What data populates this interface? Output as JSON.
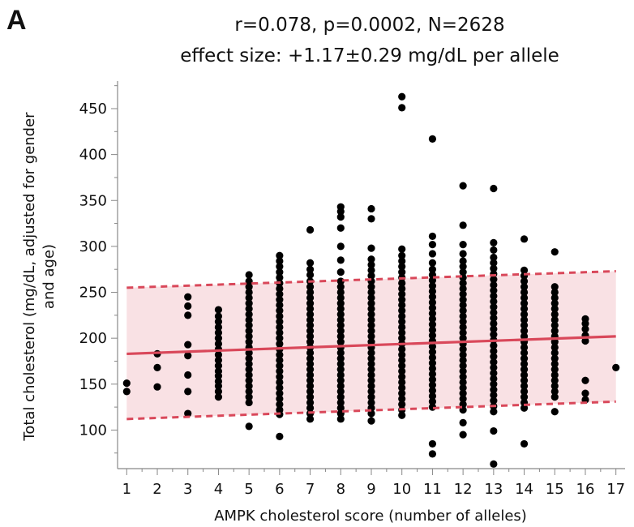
{
  "panel_label": "A",
  "chart_data": {
    "type": "scatter",
    "title": "r=0.078, p=0.0002, N=2628",
    "subtitle": "effect size: +1.17±0.29 mg/dL per allele",
    "xlabel": "AMPK cholesterol score (number of alleles)",
    "ylabel_lines": [
      "Total cholesterol (mg/dL, adjusted for gender",
      "and age)"
    ],
    "xlim": [
      0.7,
      17.3
    ],
    "ylim": [
      58,
      480
    ],
    "x_ticks": [
      1,
      2,
      3,
      4,
      5,
      6,
      7,
      8,
      9,
      10,
      11,
      12,
      13,
      14,
      15,
      16,
      17
    ],
    "y_ticks": [
      100,
      150,
      200,
      250,
      300,
      350,
      400,
      450
    ],
    "regression": {
      "x": [
        1,
        17
      ],
      "y": [
        183,
        202
      ],
      "color": "#d9485a"
    },
    "prediction_band": {
      "x": [
        1,
        17
      ],
      "lower": [
        112,
        131
      ],
      "upper": [
        255,
        273
      ],
      "fill": "#f9e1e4",
      "color": "#d9485a"
    },
    "point_color": "#000000",
    "points": [
      {
        "x": 1,
        "y": [
          142,
          151
        ]
      },
      {
        "x": 2,
        "y": [
          147,
          168,
          183
        ]
      },
      {
        "x": 3,
        "y": [
          118,
          142,
          160,
          181,
          193,
          225,
          235,
          245
        ]
      },
      {
        "x": 4,
        "y": [
          136,
          142,
          148,
          153,
          159,
          164,
          170,
          176,
          182,
          188,
          194,
          200,
          206,
          212,
          218,
          224,
          231
        ]
      },
      {
        "x": 5,
        "y": [
          104,
          130,
          136,
          142,
          148,
          154,
          160,
          166,
          172,
          178,
          184,
          190,
          196,
          202,
          208,
          214,
          220,
          226,
          232,
          238,
          244,
          250,
          256,
          262,
          269
        ]
      },
      {
        "x": 6,
        "y": [
          93,
          117,
          122,
          128,
          134,
          140,
          146,
          152,
          158,
          164,
          170,
          176,
          182,
          188,
          194,
          200,
          206,
          212,
          218,
          224,
          230,
          236,
          242,
          248,
          254,
          260,
          266,
          272,
          278,
          284,
          290
        ]
      },
      {
        "x": 7,
        "y": [
          112,
          118,
          124,
          130,
          136,
          142,
          148,
          154,
          160,
          166,
          172,
          178,
          184,
          190,
          196,
          202,
          208,
          214,
          220,
          226,
          232,
          238,
          244,
          250,
          256,
          262,
          269,
          275,
          282,
          318
        ]
      },
      {
        "x": 8,
        "y": [
          112,
          118,
          124,
          130,
          136,
          142,
          148,
          154,
          160,
          166,
          172,
          178,
          184,
          190,
          196,
          202,
          208,
          214,
          220,
          226,
          232,
          238,
          244,
          250,
          256,
          262,
          272,
          285,
          300,
          320,
          332,
          338,
          343
        ]
      },
      {
        "x": 9,
        "y": [
          110,
          118,
          124,
          130,
          136,
          142,
          148,
          154,
          160,
          166,
          172,
          178,
          184,
          190,
          196,
          202,
          208,
          214,
          220,
          226,
          232,
          238,
          244,
          250,
          256,
          262,
          268,
          274,
          280,
          286,
          298,
          330,
          341
        ]
      },
      {
        "x": 10,
        "y": [
          116,
          122,
          128,
          134,
          140,
          146,
          152,
          158,
          164,
          170,
          176,
          182,
          188,
          194,
          200,
          206,
          212,
          218,
          224,
          230,
          236,
          242,
          248,
          254,
          260,
          266,
          272,
          278,
          284,
          290,
          297,
          451,
          463
        ]
      },
      {
        "x": 11,
        "y": [
          74,
          85,
          125,
          131,
          137,
          143,
          149,
          155,
          161,
          167,
          173,
          179,
          185,
          191,
          197,
          203,
          209,
          215,
          221,
          227,
          233,
          239,
          245,
          251,
          257,
          263,
          269,
          275,
          282,
          292,
          302,
          311,
          417
        ]
      },
      {
        "x": 12,
        "y": [
          95,
          108,
          122,
          128,
          134,
          140,
          146,
          152,
          158,
          164,
          170,
          176,
          182,
          188,
          194,
          200,
          206,
          212,
          218,
          224,
          230,
          236,
          242,
          248,
          254,
          260,
          266,
          272,
          278,
          284,
          292,
          302,
          323,
          366
        ]
      },
      {
        "x": 13,
        "y": [
          63,
          99,
          120,
          126,
          132,
          138,
          144,
          150,
          156,
          162,
          168,
          174,
          180,
          186,
          192,
          198,
          204,
          210,
          216,
          222,
          228,
          234,
          240,
          246,
          252,
          258,
          264,
          270,
          276,
          282,
          288,
          296,
          304,
          363
        ]
      },
      {
        "x": 14,
        "y": [
          85,
          124,
          130,
          136,
          142,
          148,
          154,
          160,
          166,
          172,
          178,
          184,
          190,
          196,
          202,
          208,
          214,
          220,
          226,
          232,
          238,
          244,
          250,
          256,
          262,
          268,
          274,
          308
        ]
      },
      {
        "x": 15,
        "y": [
          120,
          136,
          142,
          148,
          154,
          160,
          166,
          172,
          178,
          184,
          190,
          196,
          202,
          208,
          214,
          220,
          226,
          232,
          238,
          244,
          250,
          256,
          294
        ]
      },
      {
        "x": 16,
        "y": [
          133,
          140,
          154,
          197,
          203,
          210,
          216,
          221
        ]
      },
      {
        "x": 17,
        "y": [
          168
        ]
      }
    ]
  }
}
